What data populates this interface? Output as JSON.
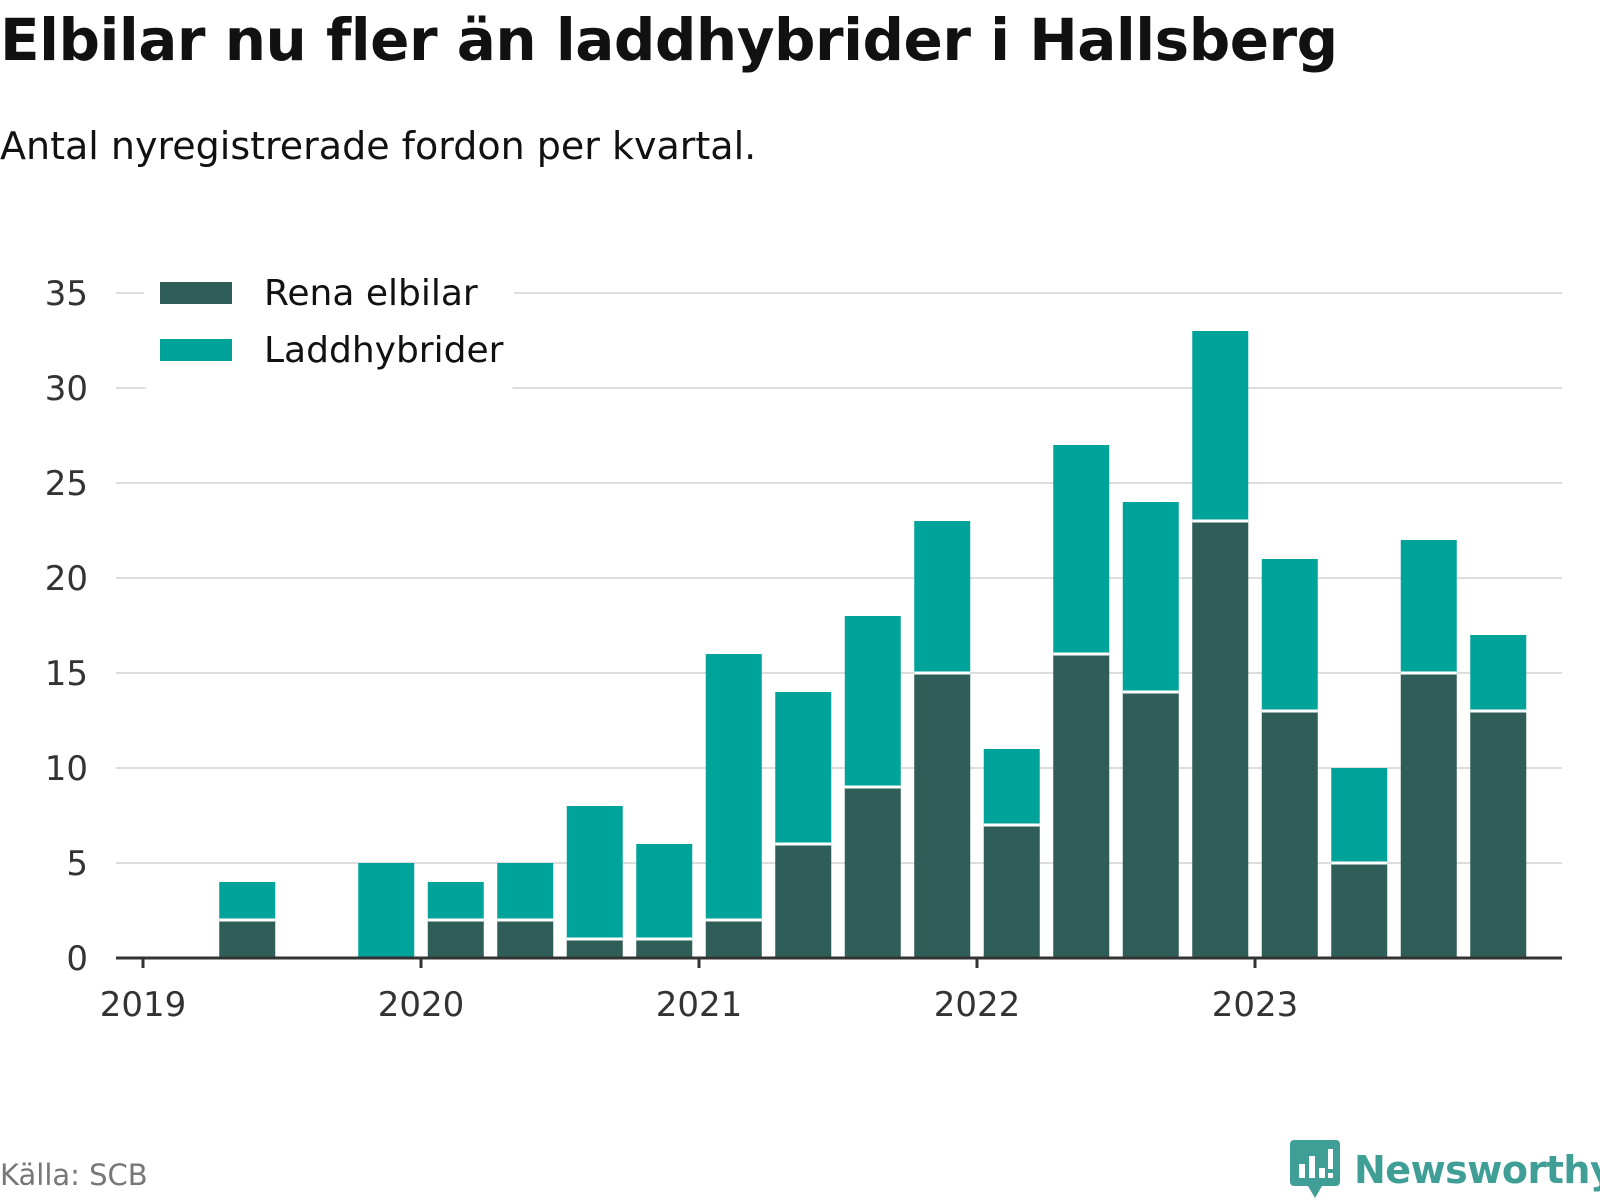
{
  "title": "Elbilar nu fler än laddhybrider i Hallsberg",
  "subtitle": "Antal nyregistrerade fordon per kvartal.",
  "source": "Källa: SCB",
  "brand": "Newsworthy",
  "colors": {
    "elbilar": "#2f5d57",
    "laddhybrider": "#00a39a",
    "grid": "#dddddd",
    "axis": "#333333",
    "brand": "#3f9e95"
  },
  "chart_data": {
    "type": "bar",
    "stacked": true,
    "title": "Elbilar nu fler än laddhybrider i Hallsberg",
    "subtitle": "Antal nyregistrerade fordon per kvartal.",
    "xlabel": "",
    "ylabel": "",
    "ylim": [
      0,
      35
    ],
    "yticks": [
      0,
      5,
      10,
      15,
      20,
      25,
      30,
      35
    ],
    "x_tick_labels": [
      "2019",
      "2020",
      "2021",
      "2022",
      "2023"
    ],
    "categories": [
      "2019 Q1",
      "2019 Q2",
      "2019 Q3",
      "2019 Q4",
      "2020 Q1",
      "2020 Q2",
      "2020 Q3",
      "2020 Q4",
      "2021 Q1",
      "2021 Q2",
      "2021 Q3",
      "2021 Q4",
      "2022 Q1",
      "2022 Q2",
      "2022 Q3",
      "2022 Q4",
      "2023 Q1",
      "2023 Q2",
      "2023 Q3",
      "2023 Q4"
    ],
    "legend_position": "top-left",
    "grid": true,
    "series": [
      {
        "name": "Rena elbilar",
        "values": [
          0,
          2,
          0,
          0,
          2,
          2,
          1,
          1,
          2,
          6,
          9,
          15,
          7,
          16,
          14,
          23,
          13,
          5,
          15,
          13
        ]
      },
      {
        "name": "Laddhybrider",
        "values": [
          0,
          2,
          0,
          5,
          2,
          3,
          7,
          5,
          14,
          8,
          9,
          8,
          4,
          11,
          10,
          10,
          8,
          5,
          7,
          4
        ]
      }
    ]
  }
}
